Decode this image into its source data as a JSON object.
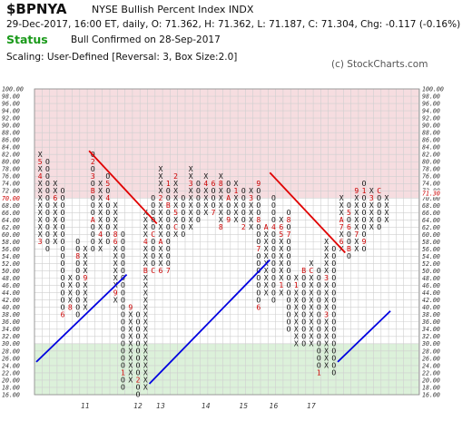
{
  "header": {
    "symbol": "$BPNYA",
    "name": "NYSE Bullish Percent Index  INDX",
    "quote": "29-Dec-2017, 16:00 ET, daily, O: 71.362, H: 71.362, L: 71.187, C: 71.304, Chg: -0.117 (-0.16%)",
    "status_label": "Status",
    "status_text": "Bull Confirmed on 28-Sep-2017",
    "scaling": "Scaling: User-Defined [Reversal: 3, Box Size:2.0]",
    "credit": "(c) StockCharts.com"
  },
  "chart_data": {
    "type": "point-and-figure",
    "box_size": 2.0,
    "reversal": 3,
    "ylim": [
      16,
      100
    ],
    "y_ticks": [
      "100.00",
      "98.00",
      "96.00",
      "94.00",
      "92.00",
      "90.00",
      "88.00",
      "86.00",
      "84.00",
      "82.00",
      "80.00",
      "78.00",
      "76.00",
      "74.00",
      "72.00",
      "70.00",
      "68.00",
      "66.00",
      "64.00",
      "62.00",
      "60.00",
      "58.00",
      "56.00",
      "54.00",
      "52.00",
      "50.00",
      "48.00",
      "46.00",
      "44.00",
      "42.00",
      "40.00",
      "38.00",
      "36.00",
      "34.00",
      "32.00",
      "30.00",
      "28.00",
      "26.00",
      "24.00",
      "22.00",
      "20.00",
      "18.00",
      "16.00"
    ],
    "overbought_level": 70,
    "oversold_level": 30,
    "left_reference_label": "70.00",
    "current_value_label": "71.30",
    "x_labels": [
      {
        "text": "11",
        "col": 6
      },
      {
        "text": "12",
        "col": 13
      },
      {
        "text": "13",
        "col": 16
      },
      {
        "text": "14",
        "col": 22
      },
      {
        "text": "15",
        "col": 27
      },
      {
        "text": "16",
        "col": 31
      },
      {
        "text": "17",
        "col": 36
      }
    ],
    "columns": [
      {
        "type": "X",
        "low": 58,
        "high": 82,
        "marks": [
          {
            "v": 58,
            "t": "3"
          },
          {
            "v": 76,
            "t": "4"
          },
          {
            "v": 80,
            "t": "5"
          }
        ]
      },
      {
        "type": "O",
        "low": 56,
        "high": 80,
        "marks": []
      },
      {
        "type": "X",
        "low": 58,
        "high": 74,
        "marks": [
          {
            "v": 70,
            "t": "6"
          }
        ]
      },
      {
        "type": "O",
        "low": 38,
        "high": 72,
        "marks": [
          {
            "v": 38,
            "t": "6"
          }
        ]
      },
      {
        "type": "X",
        "low": 40,
        "high": 48,
        "marks": [
          {
            "v": 40,
            "t": "8"
          }
        ]
      },
      {
        "type": "O",
        "low": 38,
        "high": 58,
        "marks": [
          {
            "v": 54,
            "t": "8"
          }
        ]
      },
      {
        "type": "X",
        "low": 40,
        "high": 56,
        "marks": [
          {
            "v": 48,
            "t": "9"
          }
        ]
      },
      {
        "type": "O",
        "low": 56,
        "high": 82,
        "marks": [
          {
            "v": 64,
            "t": "A"
          },
          {
            "v": 72,
            "t": "B"
          },
          {
            "v": 76,
            "t": "3"
          },
          {
            "v": 80,
            "t": "2"
          }
        ]
      },
      {
        "type": "X",
        "low": 56,
        "high": 74,
        "marks": [
          {
            "v": 60,
            "t": "4"
          }
        ]
      },
      {
        "type": "O",
        "low": 58,
        "high": 76,
        "marks": [
          {
            "v": 70,
            "t": "4"
          },
          {
            "v": 74,
            "t": "5"
          }
        ]
      },
      {
        "type": "X",
        "low": 42,
        "high": 68,
        "marks": [
          {
            "v": 44,
            "t": "9"
          },
          {
            "v": 58,
            "t": "6"
          },
          {
            "v": 60,
            "t": "8"
          }
        ]
      },
      {
        "type": "O",
        "low": 18,
        "high": 60,
        "marks": [
          {
            "v": 22,
            "t": "1"
          }
        ]
      },
      {
        "type": "X",
        "low": 20,
        "high": 40,
        "marks": [
          {
            "v": 40,
            "t": "9"
          }
        ]
      },
      {
        "type": "O",
        "low": 16,
        "high": 38,
        "marks": [
          {
            "v": 20,
            "t": "2"
          }
        ]
      },
      {
        "type": "X",
        "low": 18,
        "high": 66,
        "marks": [
          {
            "v": 50,
            "t": "B"
          },
          {
            "v": 58,
            "t": "4"
          }
        ]
      },
      {
        "type": "O",
        "low": 50,
        "high": 70,
        "marks": [
          {
            "v": 50,
            "t": "C"
          },
          {
            "v": 60,
            "t": "C"
          }
        ]
      },
      {
        "type": "X",
        "low": 50,
        "high": 78,
        "marks": [
          {
            "v": 50,
            "t": "6"
          },
          {
            "v": 58,
            "t": "A"
          },
          {
            "v": 70,
            "t": "2"
          }
        ]
      },
      {
        "type": "O",
        "low": 50,
        "high": 74,
        "marks": [
          {
            "v": 50,
            "t": "7"
          },
          {
            "v": 68,
            "t": "B"
          },
          {
            "v": 74,
            "t": "1"
          }
        ]
      },
      {
        "type": "X",
        "low": 60,
        "high": 76,
        "marks": [
          {
            "v": 62,
            "t": "C"
          },
          {
            "v": 66,
            "t": "5"
          },
          {
            "v": 76,
            "t": "2"
          }
        ]
      },
      {
        "type": "O",
        "low": 60,
        "high": 70,
        "marks": []
      },
      {
        "type": "X",
        "low": 62,
        "high": 78,
        "marks": [
          {
            "v": 74,
            "t": "3"
          }
        ]
      },
      {
        "type": "O",
        "low": 64,
        "high": 74,
        "marks": []
      },
      {
        "type": "X",
        "low": 66,
        "high": 76,
        "marks": [
          {
            "v": 74,
            "t": "4"
          }
        ]
      },
      {
        "type": "O",
        "low": 66,
        "high": 74,
        "marks": [
          {
            "v": 66,
            "t": "7"
          },
          {
            "v": 74,
            "t": "6"
          }
        ]
      },
      {
        "type": "X",
        "low": 62,
        "high": 76,
        "marks": [
          {
            "v": 62,
            "t": "8"
          },
          {
            "v": 74,
            "t": "8"
          }
        ]
      },
      {
        "type": "O",
        "low": 64,
        "high": 74,
        "marks": [
          {
            "v": 64,
            "t": "9"
          },
          {
            "v": 70,
            "t": "A"
          }
        ]
      },
      {
        "type": "X",
        "low": 64,
        "high": 74,
        "marks": [
          {
            "v": 72,
            "t": "1"
          }
        ]
      },
      {
        "type": "O",
        "low": 62,
        "high": 72,
        "marks": [
          {
            "v": 62,
            "t": "2"
          }
        ]
      },
      {
        "type": "X",
        "low": 62,
        "high": 72,
        "marks": [
          {
            "v": 70,
            "t": "3"
          }
        ]
      },
      {
        "type": "O",
        "low": 40,
        "high": 74,
        "marks": [
          {
            "v": 40,
            "t": "6"
          },
          {
            "v": 56,
            "t": "7"
          },
          {
            "v": 64,
            "t": "8"
          },
          {
            "v": 74,
            "t": "9"
          }
        ]
      },
      {
        "type": "X",
        "low": 44,
        "high": 62,
        "marks": [
          {
            "v": 62,
            "t": "A"
          }
        ]
      },
      {
        "type": "O",
        "low": 42,
        "high": 70,
        "marks": [
          {
            "v": 62,
            "t": "4"
          }
        ]
      },
      {
        "type": "X",
        "low": 44,
        "high": 64,
        "marks": [
          {
            "v": 46,
            "t": "1"
          },
          {
            "v": 60,
            "t": "5"
          },
          {
            "v": 62,
            "t": "6"
          }
        ]
      },
      {
        "type": "O",
        "low": 34,
        "high": 66,
        "marks": [
          {
            "v": 60,
            "t": "7"
          },
          {
            "v": 64,
            "t": "8"
          }
        ]
      },
      {
        "type": "X",
        "low": 30,
        "high": 48,
        "marks": [
          {
            "v": 46,
            "t": "1"
          }
        ]
      },
      {
        "type": "O",
        "low": 30,
        "high": 50,
        "marks": [
          {
            "v": 50,
            "t": "B"
          }
        ]
      },
      {
        "type": "X",
        "low": 30,
        "high": 52,
        "marks": [
          {
            "v": 50,
            "t": "C"
          }
        ]
      },
      {
        "type": "O",
        "low": 22,
        "high": 50,
        "marks": [
          {
            "v": 22,
            "t": "1"
          }
        ]
      },
      {
        "type": "X",
        "low": 24,
        "high": 58,
        "marks": [
          {
            "v": 38,
            "t": "3"
          },
          {
            "v": 48,
            "t": "3"
          }
        ]
      },
      {
        "type": "O",
        "low": 22,
        "high": 56,
        "marks": []
      },
      {
        "type": "X",
        "low": 56,
        "high": 70,
        "marks": [
          {
            "v": 58,
            "t": "6"
          },
          {
            "v": 62,
            "t": "7"
          },
          {
            "v": 64,
            "t": "A"
          }
        ]
      },
      {
        "type": "O",
        "low": 54,
        "high": 68,
        "marks": [
          {
            "v": 56,
            "t": "B"
          },
          {
            "v": 62,
            "t": "6"
          },
          {
            "v": 66,
            "t": "5"
          },
          {
            "v": 70,
            "t": "8"
          }
        ]
      },
      {
        "type": "X",
        "low": 56,
        "high": 72,
        "marks": [
          {
            "v": 60,
            "t": "7"
          },
          {
            "v": 72,
            "t": "9"
          }
        ]
      },
      {
        "type": "O",
        "low": 56,
        "high": 74,
        "marks": [
          {
            "v": 58,
            "t": "9"
          },
          {
            "v": 72,
            "t": "1"
          }
        ]
      },
      {
        "type": "X",
        "low": 62,
        "high": 72,
        "marks": [
          {
            "v": 70,
            "t": "3"
          }
        ]
      },
      {
        "type": "O",
        "low": 62,
        "high": 72,
        "marks": [
          {
            "v": 72,
            "t": "C"
          }
        ]
      },
      {
        "type": "X",
        "low": 64,
        "high": 70,
        "marks": []
      }
    ],
    "trendlines": [
      {
        "color": "#e00000",
        "kind": "bearish resistance",
        "from": {
          "col": 7,
          "value": 82
        },
        "to": {
          "col": 16,
          "value": 62
        }
      },
      {
        "color": "#e00000",
        "kind": "bearish resistance",
        "from": {
          "col": 31,
          "value": 76
        },
        "to": {
          "col": 41,
          "value": 54
        }
      },
      {
        "color": "#0000e0",
        "kind": "bullish support",
        "from": {
          "col": 0,
          "value": 24
        },
        "to": {
          "col": 12,
          "value": 48
        }
      },
      {
        "color": "#0000e0",
        "kind": "bullish support",
        "from": {
          "col": 15,
          "value": 18
        },
        "to": {
          "col": 31,
          "value": 52
        }
      },
      {
        "color": "#0000e0",
        "kind": "bullish support",
        "from": {
          "col": 40,
          "value": 24
        },
        "to": {
          "col": 47,
          "value": 38
        }
      }
    ],
    "colors": {
      "overbought_zone": "#f6dde0",
      "oversold_zone": "#dcf1da",
      "neutral_zone": "#ffffff",
      "grid": "#cfcfcf",
      "marks": "#111111",
      "month_marks": "#cc0000",
      "axis_labels": "#333333",
      "reference_label": "#cc0000"
    }
  }
}
